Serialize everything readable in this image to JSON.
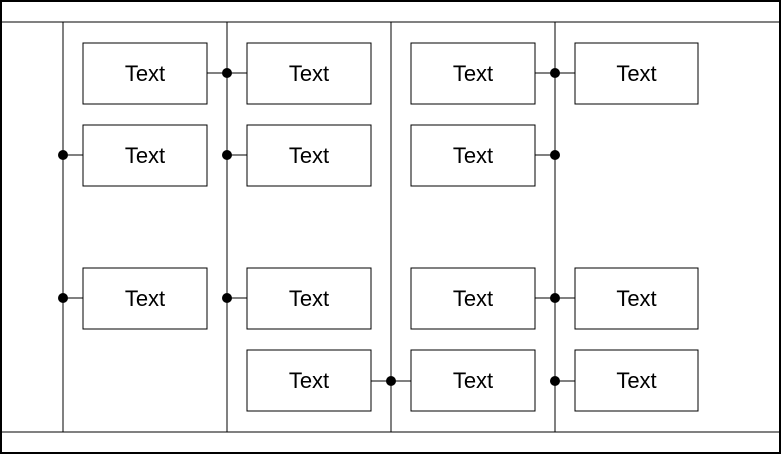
{
  "boxes": [
    {
      "id": "r1c1",
      "label": "Text"
    },
    {
      "id": "r1c2",
      "label": "Text"
    },
    {
      "id": "r1c3",
      "label": "Text"
    },
    {
      "id": "r1c4",
      "label": "Text"
    },
    {
      "id": "r2c1",
      "label": "Text"
    },
    {
      "id": "r2c2",
      "label": "Text"
    },
    {
      "id": "r2c3",
      "label": "Text"
    },
    {
      "id": "r3c1",
      "label": "Text"
    },
    {
      "id": "r3c2",
      "label": "Text"
    },
    {
      "id": "r3c3",
      "label": "Text"
    },
    {
      "id": "r3c4",
      "label": "Text"
    },
    {
      "id": "r4c2",
      "label": "Text"
    },
    {
      "id": "r4c3",
      "label": "Text"
    },
    {
      "id": "r4c4",
      "label": "Text"
    }
  ]
}
